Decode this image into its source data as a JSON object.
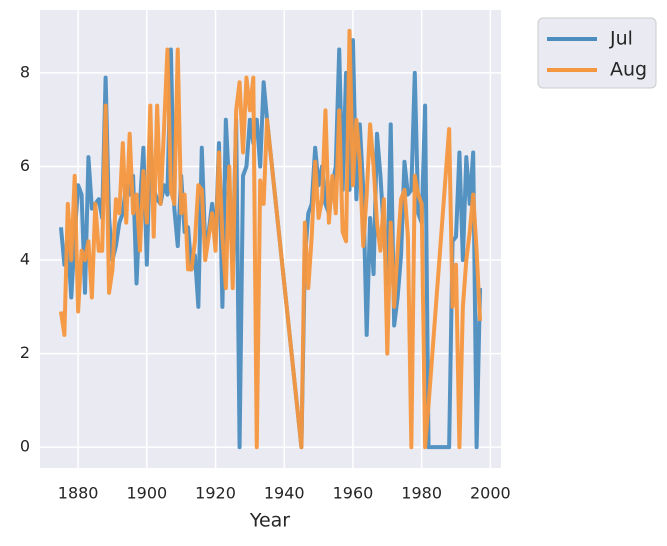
{
  "chart_data": {
    "type": "line",
    "xlabel": "Year",
    "x": [
      1875,
      1876,
      1877,
      1878,
      1879,
      1880,
      1881,
      1882,
      1883,
      1884,
      1885,
      1886,
      1887,
      1888,
      1889,
      1890,
      1891,
      1892,
      1893,
      1894,
      1895,
      1896,
      1897,
      1898,
      1899,
      1900,
      1901,
      1902,
      1903,
      1904,
      1905,
      1906,
      1907,
      1908,
      1909,
      1910,
      1911,
      1912,
      1913,
      1914,
      1915,
      1916,
      1917,
      1918,
      1919,
      1920,
      1921,
      1922,
      1923,
      1924,
      1925,
      1926,
      1927,
      1928,
      1929,
      1930,
      1931,
      1932,
      1933,
      1934,
      1935,
      1945,
      1946,
      1947,
      1948,
      1949,
      1950,
      1951,
      1952,
      1953,
      1954,
      1955,
      1956,
      1957,
      1958,
      1959,
      1960,
      1961,
      1962,
      1963,
      1964,
      1965,
      1966,
      1967,
      1968,
      1969,
      1970,
      1971,
      1972,
      1973,
      1974,
      1975,
      1976,
      1977,
      1978,
      1979,
      1980,
      1981,
      1982,
      1988,
      1989,
      1990,
      1991,
      1992,
      1993,
      1994,
      1995,
      1996,
      1997
    ],
    "series": [
      {
        "name": "Jul",
        "color": "#4c8dbf",
        "values": [
          4.7,
          3.9,
          4.4,
          3.2,
          4.5,
          5.6,
          5.4,
          3.3,
          6.2,
          5.1,
          5.2,
          5.3,
          4.9,
          7.9,
          4.9,
          4.0,
          4.3,
          4.8,
          5.0,
          5.6,
          5.4,
          5.8,
          3.5,
          5.2,
          6.4,
          3.9,
          6.6,
          5.5,
          5.3,
          5.2,
          5.6,
          5.4,
          8.5,
          5.1,
          4.3,
          5.8,
          4.6,
          4.7,
          3.8,
          4.1,
          3.0,
          6.4,
          4.3,
          4.6,
          5.2,
          4.4,
          6.5,
          3.0,
          7.0,
          5.5,
          4.0,
          7.0,
          0.0,
          5.8,
          6.0,
          7.0,
          6.5,
          7.0,
          6.0,
          7.8,
          7.0,
          0.0,
          4.0,
          5.0,
          5.2,
          6.4,
          5.6,
          6.0,
          5.2,
          5.0,
          5.6,
          6.0,
          8.5,
          5.5,
          8.0,
          5.5,
          8.7,
          5.3,
          6.9,
          5.5,
          2.4,
          4.9,
          3.7,
          6.7,
          5.8,
          4.6,
          3.5,
          6.9,
          2.6,
          3.2,
          4.1,
          6.1,
          5.4,
          5.5,
          8.0,
          5.0,
          4.8,
          7.3,
          0.0,
          0.0,
          4.4,
          4.5,
          6.3,
          4.0,
          6.2,
          5.2,
          6.3,
          0.0,
          3.4
        ]
      },
      {
        "name": "Aug",
        "color": "#f5973e",
        "values": [
          2.9,
          2.4,
          5.2,
          4.0,
          5.8,
          2.9,
          4.2,
          4.0,
          4.4,
          3.2,
          5.2,
          4.2,
          4.2,
          7.3,
          3.3,
          3.8,
          5.3,
          5.0,
          6.5,
          4.8,
          6.7,
          5.0,
          5.4,
          4.2,
          5.9,
          4.8,
          7.3,
          4.5,
          7.3,
          5.2,
          6.8,
          8.5,
          5.5,
          5.2,
          8.5,
          5.0,
          5.4,
          3.8,
          3.8,
          4.4,
          5.6,
          5.5,
          4.0,
          4.5,
          5.0,
          4.2,
          6.3,
          4.5,
          3.4,
          6.0,
          3.4,
          7.2,
          7.8,
          6.3,
          7.9,
          7.2,
          7.9,
          0.0,
          5.7,
          5.2,
          7.0,
          0.0,
          4.8,
          3.4,
          4.5,
          6.1,
          4.9,
          5.3,
          7.2,
          4.8,
          5.8,
          5.0,
          7.2,
          4.6,
          4.4,
          8.9,
          5.6,
          7.0,
          6.1,
          4.3,
          5.4,
          6.9,
          6.0,
          4.8,
          4.2,
          5.3,
          2.0,
          4.8,
          3.0,
          4.2,
          5.3,
          5.5,
          4.5,
          0.0,
          5.8,
          5.4,
          5.2,
          0.0,
          0.9,
          6.8,
          3.0,
          3.9,
          0.0,
          3.0,
          4.0,
          4.6,
          5.4,
          4.2,
          2.7
        ]
      }
    ],
    "xlim": [
      1868.9,
      2003.1
    ],
    "xticks": [
      1880,
      1900,
      1920,
      1940,
      1960,
      1980,
      2000
    ],
    "ylim": [
      -0.445,
      9.345
    ],
    "yticks": [
      0,
      2,
      4,
      6,
      8
    ],
    "grid": true,
    "legend": "outside-upper-right"
  }
}
